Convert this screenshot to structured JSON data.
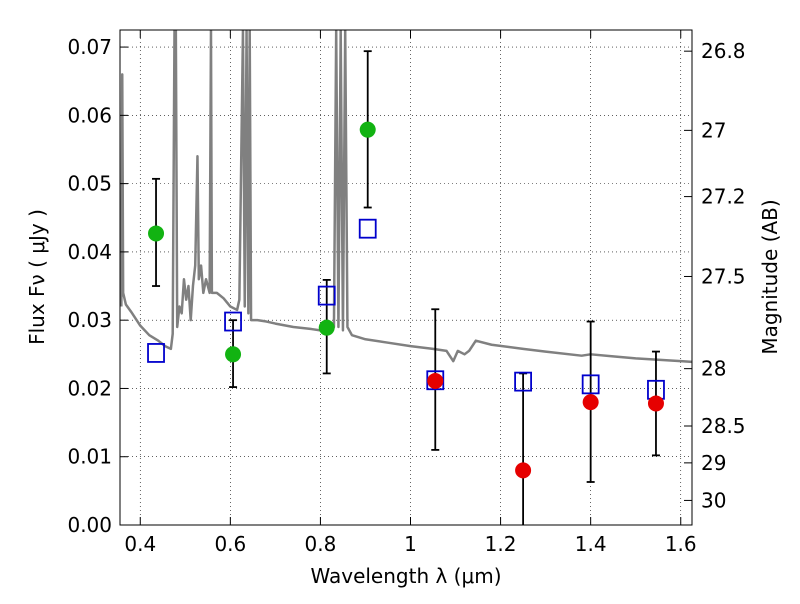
{
  "chart_data": {
    "type": "scatter",
    "title": "",
    "xlabel": "Wavelength  λ (μm)",
    "ylabel": "Flux  Fν  ( μJy )",
    "y2label": "Magnitude (AB)",
    "xlim": [
      0.355,
      1.625
    ],
    "ylim": [
      0.0,
      0.0725
    ],
    "x_ticks": [
      0.4,
      0.6,
      0.8,
      1.0,
      1.2,
      1.4,
      1.6
    ],
    "x_tick_labels": [
      "0.4",
      "0.6",
      "0.8",
      "1",
      "1.2",
      "1.4",
      "1.6"
    ],
    "y_ticks": [
      0.0,
      0.01,
      0.02,
      0.03,
      0.04,
      0.05,
      0.06,
      0.07
    ],
    "y_tick_labels": [
      "0.00",
      "0.01",
      "0.02",
      "0.03",
      "0.04",
      "0.05",
      "0.06",
      "0.07"
    ],
    "y2_ticks": [
      {
        "label": "26.8",
        "flux": 0.0694
      },
      {
        "label": "27",
        "flux": 0.0578
      },
      {
        "label": "27.2",
        "flux": 0.0481
      },
      {
        "label": "27.5",
        "flux": 0.0364
      },
      {
        "label": "28",
        "flux": 0.0229
      },
      {
        "label": "28.5",
        "flux": 0.0145
      },
      {
        "label": "29",
        "flux": 0.0091
      },
      {
        "label": "30",
        "flux": 0.0036
      }
    ],
    "grid": true,
    "colors": {
      "model": "#808080",
      "green_points": "#12b312",
      "red_points": "#e60000",
      "model_squares": "#0000cc",
      "errorbars": "#000000"
    },
    "series": [
      {
        "marker": "circle",
        "color": "#12b312",
        "points": [
          {
            "x": 0.435,
            "y": 0.0427,
            "lo": 0.035,
            "hi": 0.0507
          },
          {
            "x": 0.606,
            "y": 0.025,
            "lo": 0.0202,
            "hi": 0.03
          },
          {
            "x": 0.814,
            "y": 0.0289,
            "lo": 0.0222,
            "hi": 0.0359
          },
          {
            "x": 0.905,
            "y": 0.0579,
            "lo": 0.0465,
            "hi": 0.0694
          }
        ]
      },
      {
        "marker": "circle",
        "color": "#e60000",
        "points": [
          {
            "x": 1.055,
            "y": 0.0211,
            "lo": 0.011,
            "hi": 0.0316
          },
          {
            "x": 1.25,
            "y": 0.008,
            "lo": 0.0,
            "hi": 0.0222
          },
          {
            "x": 1.4,
            "y": 0.018,
            "lo": 0.0063,
            "hi": 0.0298
          },
          {
            "x": 1.545,
            "y": 0.0178,
            "lo": 0.0102,
            "hi": 0.0254
          }
        ]
      },
      {
        "marker": "open-square",
        "color": "#0000cc",
        "points": [
          {
            "x": 0.435,
            "y": 0.0252
          },
          {
            "x": 0.606,
            "y": 0.0298
          },
          {
            "x": 0.814,
            "y": 0.0336
          },
          {
            "x": 0.905,
            "y": 0.0434
          },
          {
            "x": 1.055,
            "y": 0.0212
          },
          {
            "x": 1.25,
            "y": 0.021
          },
          {
            "x": 1.4,
            "y": 0.0206
          },
          {
            "x": 1.545,
            "y": 0.0198
          }
        ]
      },
      {
        "marker": "line",
        "color": "#808080",
        "points": [
          {
            "x": 0.358,
            "y": 0.032
          },
          {
            "x": 0.36,
            "y": 0.066
          },
          {
            "x": 0.362,
            "y": 0.034
          },
          {
            "x": 0.368,
            "y": 0.0323
          },
          {
            "x": 0.38,
            "y": 0.0312
          },
          {
            "x": 0.4,
            "y": 0.0292
          },
          {
            "x": 0.42,
            "y": 0.0278
          },
          {
            "x": 0.44,
            "y": 0.027
          },
          {
            "x": 0.455,
            "y": 0.0262
          },
          {
            "x": 0.468,
            "y": 0.0258
          },
          {
            "x": 0.472,
            "y": 0.028
          },
          {
            "x": 0.476,
            "y": 0.0725
          },
          {
            "x": 0.479,
            "y": 0.0725
          },
          {
            "x": 0.482,
            "y": 0.029
          },
          {
            "x": 0.487,
            "y": 0.032
          },
          {
            "x": 0.492,
            "y": 0.031
          },
          {
            "x": 0.497,
            "y": 0.036
          },
          {
            "x": 0.502,
            "y": 0.033
          },
          {
            "x": 0.507,
            "y": 0.035
          },
          {
            "x": 0.512,
            "y": 0.03
          },
          {
            "x": 0.517,
            "y": 0.035
          },
          {
            "x": 0.522,
            "y": 0.038
          },
          {
            "x": 0.527,
            "y": 0.054
          },
          {
            "x": 0.53,
            "y": 0.036
          },
          {
            "x": 0.535,
            "y": 0.038
          },
          {
            "x": 0.54,
            "y": 0.034
          },
          {
            "x": 0.546,
            "y": 0.036
          },
          {
            "x": 0.554,
            "y": 0.034
          },
          {
            "x": 0.557,
            "y": 0.0725
          },
          {
            "x": 0.559,
            "y": 0.034
          },
          {
            "x": 0.57,
            "y": 0.034
          },
          {
            "x": 0.585,
            "y": 0.0332
          },
          {
            "x": 0.6,
            "y": 0.032
          },
          {
            "x": 0.615,
            "y": 0.0315
          },
          {
            "x": 0.62,
            "y": 0.033
          },
          {
            "x": 0.628,
            "y": 0.0725
          },
          {
            "x": 0.632,
            "y": 0.032
          },
          {
            "x": 0.636,
            "y": 0.0725
          },
          {
            "x": 0.64,
            "y": 0.031
          },
          {
            "x": 0.643,
            "y": 0.0725
          },
          {
            "x": 0.646,
            "y": 0.03
          },
          {
            "x": 0.66,
            "y": 0.03
          },
          {
            "x": 0.68,
            "y": 0.0298
          },
          {
            "x": 0.7,
            "y": 0.0295
          },
          {
            "x": 0.74,
            "y": 0.029
          },
          {
            "x": 0.78,
            "y": 0.0287
          },
          {
            "x": 0.8,
            "y": 0.0285
          },
          {
            "x": 0.82,
            "y": 0.0283
          },
          {
            "x": 0.83,
            "y": 0.029
          },
          {
            "x": 0.835,
            "y": 0.0725
          },
          {
            "x": 0.84,
            "y": 0.029
          },
          {
            "x": 0.845,
            "y": 0.0725
          },
          {
            "x": 0.85,
            "y": 0.0285
          },
          {
            "x": 0.855,
            "y": 0.0725
          },
          {
            "x": 0.86,
            "y": 0.029
          },
          {
            "x": 0.87,
            "y": 0.0278
          },
          {
            "x": 0.9,
            "y": 0.0272
          },
          {
            "x": 0.95,
            "y": 0.0267
          },
          {
            "x": 1.0,
            "y": 0.0262
          },
          {
            "x": 1.05,
            "y": 0.0258
          },
          {
            "x": 1.08,
            "y": 0.0255
          },
          {
            "x": 1.095,
            "y": 0.024
          },
          {
            "x": 1.105,
            "y": 0.0255
          },
          {
            "x": 1.12,
            "y": 0.025
          },
          {
            "x": 1.13,
            "y": 0.0255
          },
          {
            "x": 1.145,
            "y": 0.027
          },
          {
            "x": 1.18,
            "y": 0.0264
          },
          {
            "x": 1.25,
            "y": 0.0258
          },
          {
            "x": 1.3,
            "y": 0.0254
          },
          {
            "x": 1.38,
            "y": 0.0248
          },
          {
            "x": 1.4,
            "y": 0.025
          },
          {
            "x": 1.45,
            "y": 0.0247
          },
          {
            "x": 1.5,
            "y": 0.0244
          },
          {
            "x": 1.55,
            "y": 0.0242
          },
          {
            "x": 1.6,
            "y": 0.024
          },
          {
            "x": 1.625,
            "y": 0.0239
          }
        ]
      }
    ]
  }
}
